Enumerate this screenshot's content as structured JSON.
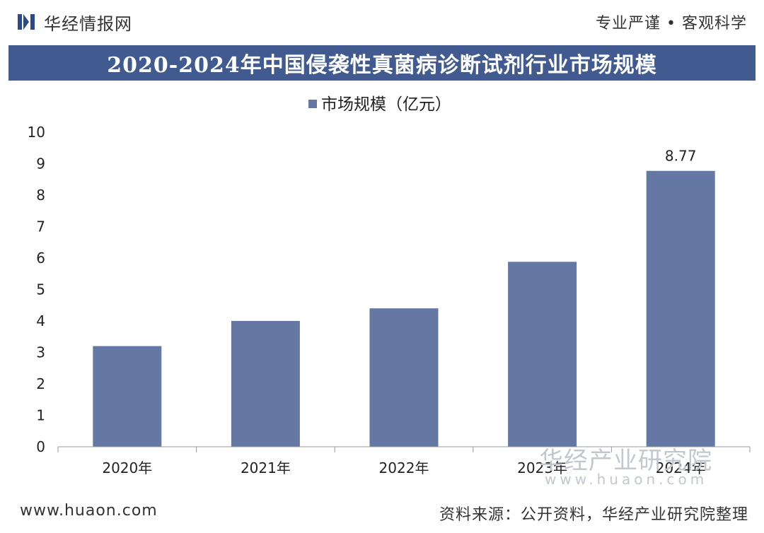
{
  "header": {
    "brand_name": "华经情报网",
    "slogan": "专业严谨 • 客观科学"
  },
  "title": "2020-2024年中国侵袭性真菌病诊断试剂行业市场规模",
  "chart_data": {
    "type": "bar",
    "categories": [
      "2020年",
      "2021年",
      "2022年",
      "2023年",
      "2024年"
    ],
    "series": [
      {
        "name": "市场规模（亿元）",
        "values": [
          3.2,
          4.0,
          4.4,
          5.88,
          8.77
        ],
        "color": "#6578a3"
      }
    ],
    "data_labels": [
      null,
      null,
      null,
      null,
      "8.77"
    ],
    "ylim": [
      0,
      10
    ],
    "yticks": [
      "0",
      "1",
      "2",
      "3",
      "4",
      "5",
      "6",
      "7",
      "8",
      "9",
      "10"
    ],
    "xlabel": "",
    "ylabel": "",
    "grid": false,
    "legend_position": "top-center"
  },
  "watermark": {
    "line1": "华经产业研究院",
    "line2": "www.huaon.com"
  },
  "footer": {
    "website": "www.huaon.com",
    "source": "资料来源：公开资料，华经产业研究院整理"
  },
  "colors": {
    "title_bar": "#415a8f",
    "bar": "#6578a3",
    "logo": "#2c4a8a"
  },
  "icons": {
    "logo": "huajing-logo-icon"
  }
}
